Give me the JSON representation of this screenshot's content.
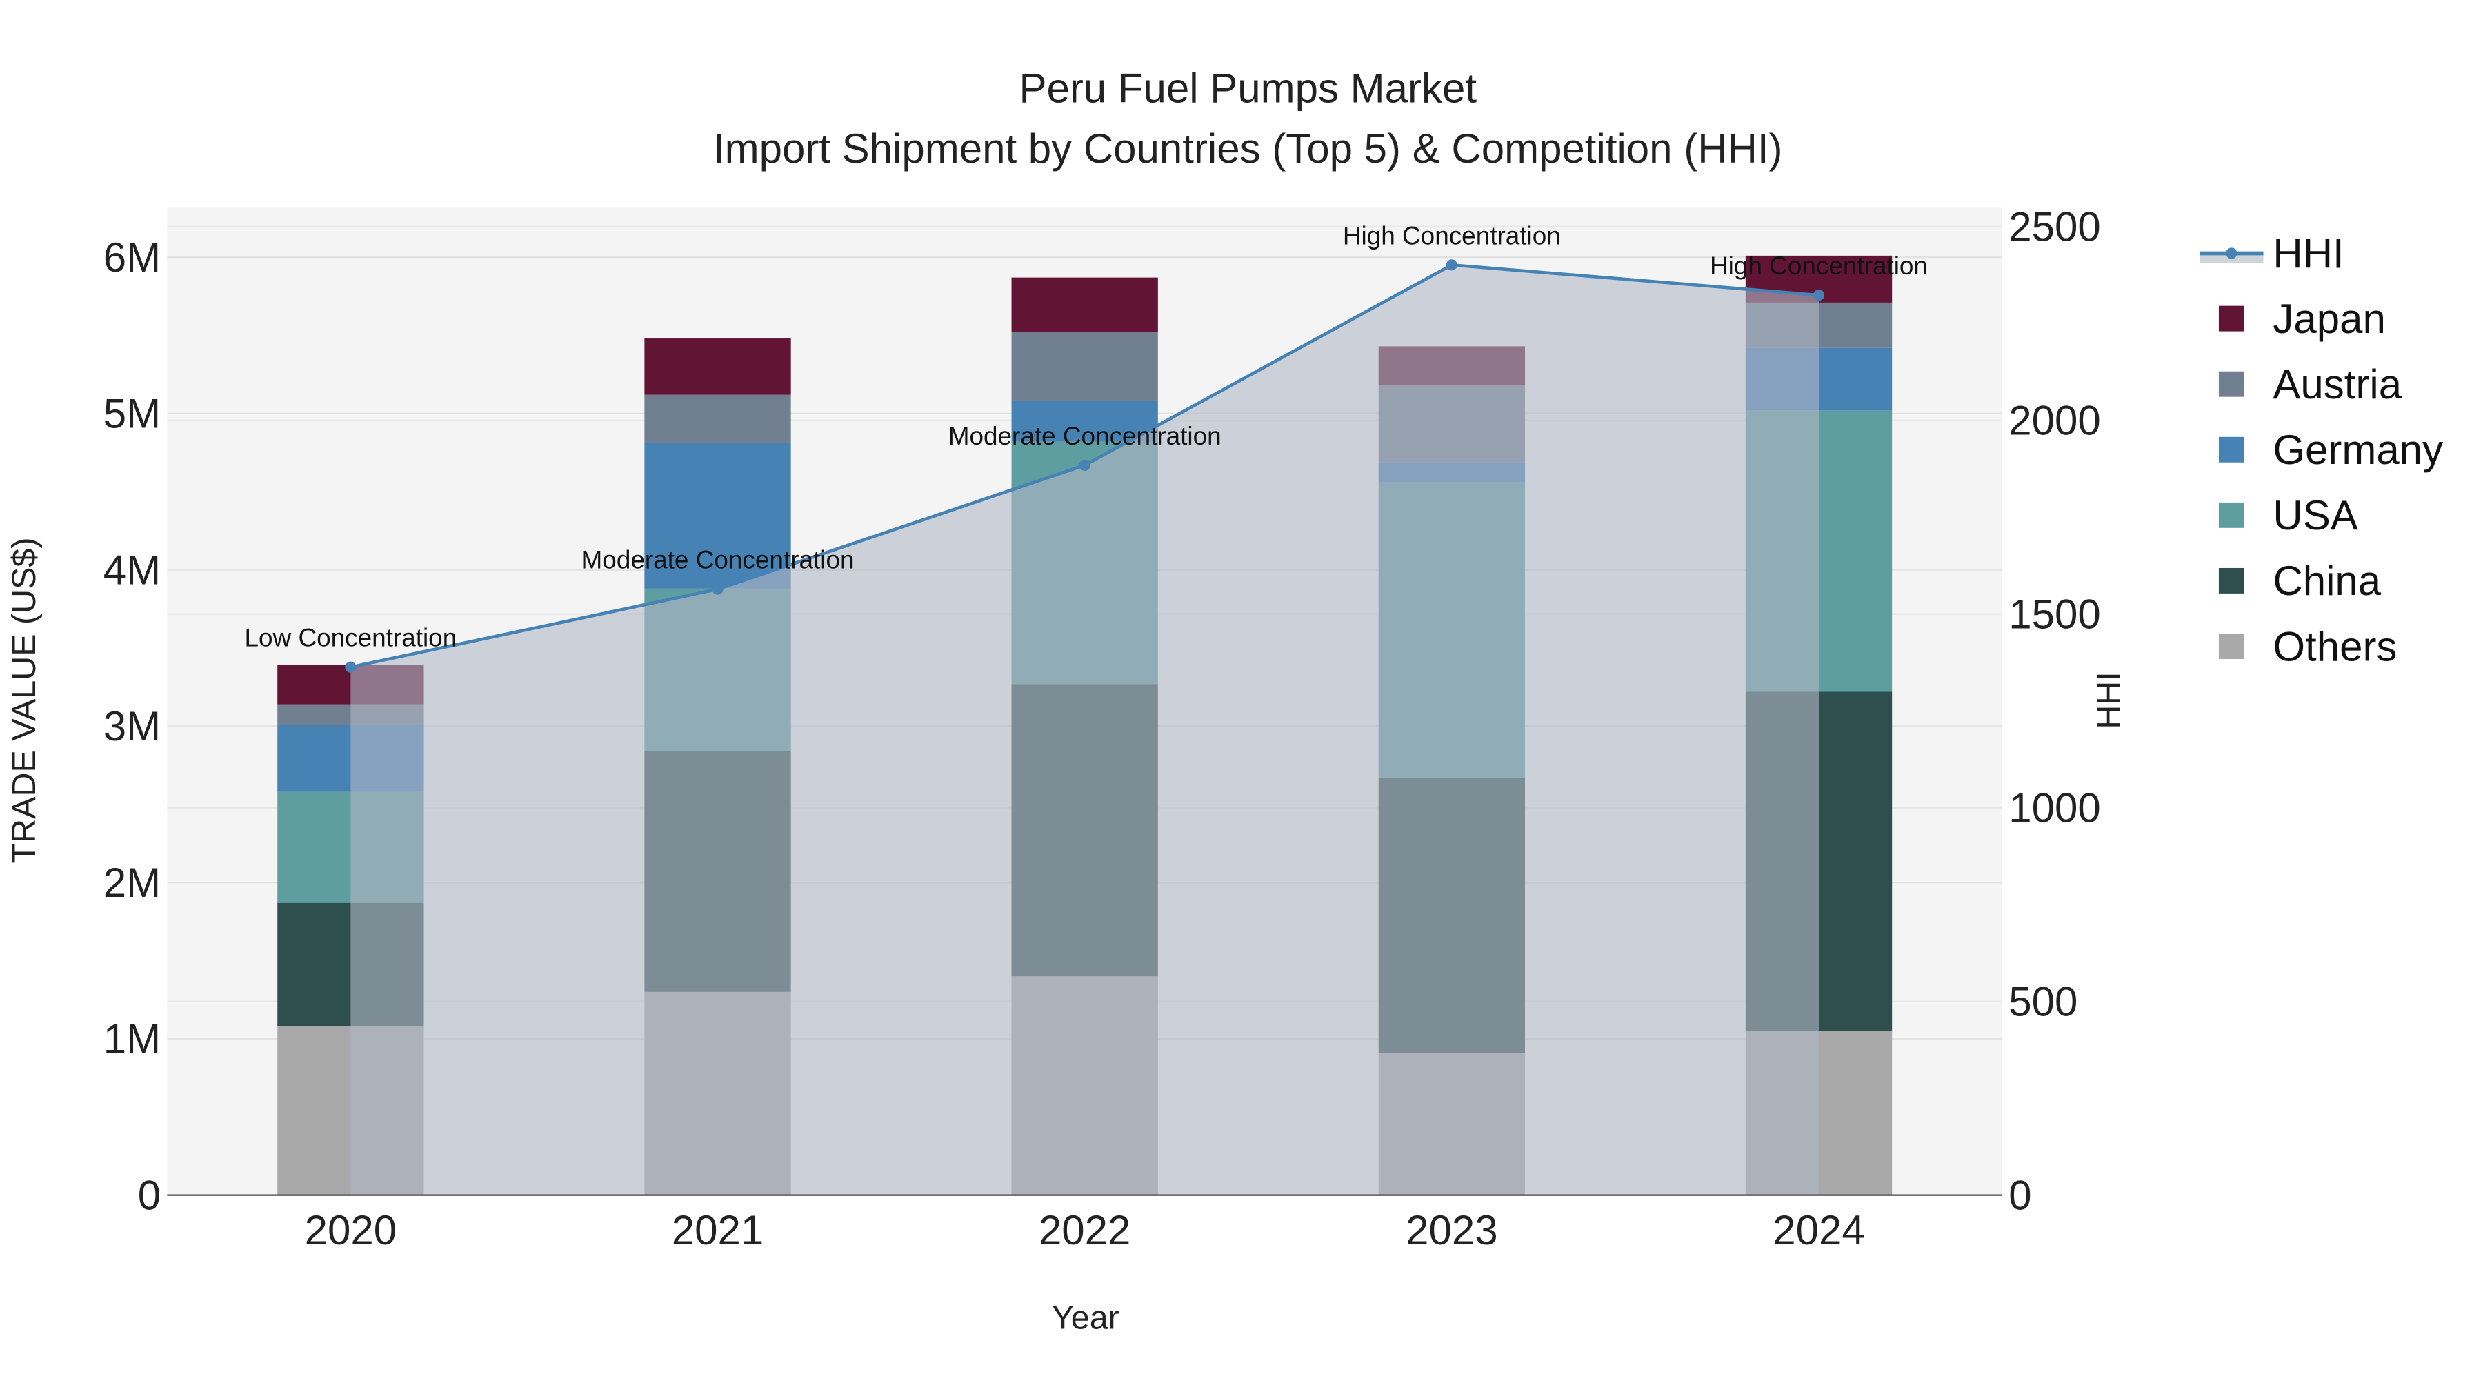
{
  "chart_data": {
    "type": "bar",
    "title": "Peru Fuel Pumps Market",
    "subtitle": "Import Shipment by Countries (Top 5) & Competition (HHI)",
    "xlabel": "Year",
    "ylabel": "TRADE VALUE (US$)",
    "y2label": "HHI",
    "categories": [
      "2020",
      "2021",
      "2022",
      "2023",
      "2024"
    ],
    "ylim": [
      0,
      6320000
    ],
    "y2lim": [
      0,
      2550
    ],
    "yticks": [
      {
        "v": 0,
        "label": "0"
      },
      {
        "v": 1000000,
        "label": "1M"
      },
      {
        "v": 2000000,
        "label": "2M"
      },
      {
        "v": 3000000,
        "label": "3M"
      },
      {
        "v": 4000000,
        "label": "4M"
      },
      {
        "v": 5000000,
        "label": "5M"
      },
      {
        "v": 6000000,
        "label": "6M"
      }
    ],
    "y2ticks": [
      {
        "v": 0,
        "label": "0"
      },
      {
        "v": 500,
        "label": "500"
      },
      {
        "v": 1000,
        "label": "1000"
      },
      {
        "v": 1500,
        "label": "1500"
      },
      {
        "v": 2000,
        "label": "2000"
      },
      {
        "v": 2500,
        "label": "2500"
      }
    ],
    "series": [
      {
        "name": "Others",
        "color": "#A9A9A9",
        "values": [
          1080000,
          1300000,
          1400000,
          910000,
          1050000
        ]
      },
      {
        "name": "China",
        "color": "#2F4F4F",
        "values": [
          790000,
          1540000,
          1870000,
          1760000,
          2170000
        ]
      },
      {
        "name": "USA",
        "color": "#5F9EA0",
        "values": [
          710000,
          1040000,
          1550000,
          1890000,
          1800000
        ]
      },
      {
        "name": "Germany",
        "color": "#4682B4",
        "values": [
          430000,
          930000,
          260000,
          130000,
          400000
        ]
      },
      {
        "name": "Austria",
        "color": "#708090",
        "values": [
          130000,
          310000,
          440000,
          490000,
          290000
        ]
      },
      {
        "name": "Japan",
        "color": "#611434",
        "values": [
          250000,
          360000,
          350000,
          250000,
          300000
        ]
      }
    ],
    "hhi": {
      "name": "HHI",
      "color": "#4682B4",
      "values": [
        1363,
        1564,
        1884,
        2401,
        2323
      ],
      "annotations": [
        "Low Concentration",
        "Moderate Concentration",
        "Moderate Concentration",
        "High Concentration",
        "High Concentration"
      ]
    },
    "legend": {
      "placement": "right",
      "order": [
        "HHI",
        "Japan",
        "Austria",
        "Germany",
        "USA",
        "China",
        "Others"
      ]
    },
    "grid": true
  }
}
